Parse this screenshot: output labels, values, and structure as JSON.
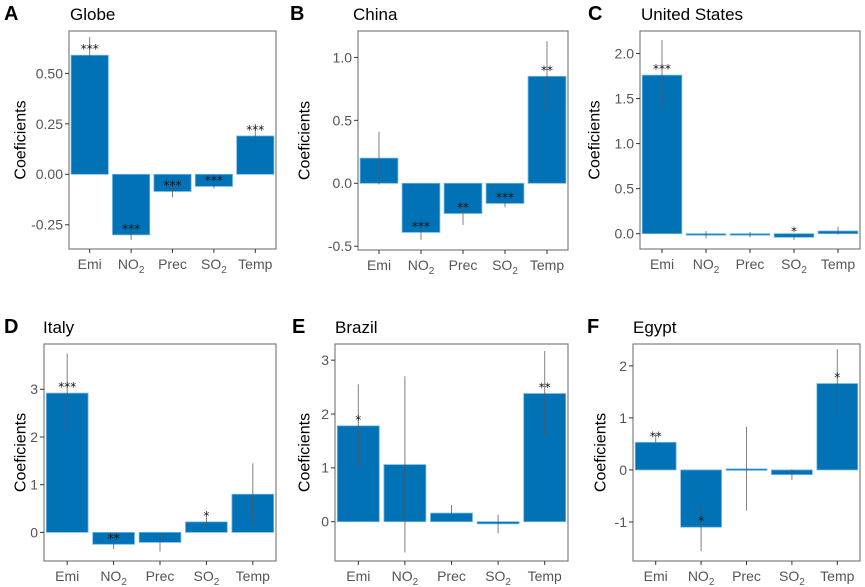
{
  "chart_data": [
    {
      "type": "bar",
      "panel": "A",
      "title": "Globe",
      "categories": [
        "Emi",
        "NO2",
        "Prec",
        "SO2",
        "Temp"
      ],
      "values": [
        0.59,
        -0.3,
        -0.085,
        -0.06,
        0.19
      ],
      "error_low": [
        0.53,
        -0.325,
        -0.115,
        -0.07,
        0.13
      ],
      "error_high": [
        0.68,
        -0.28,
        -0.06,
        -0.05,
        0.25
      ],
      "significance": [
        "***",
        "***",
        "***",
        "***",
        "***"
      ],
      "ylabel": "Coeficients",
      "xlabel": "",
      "yticks": [
        -0.25,
        0.0,
        0.25,
        0.5
      ],
      "ytick_labels": [
        "-0.25",
        "0.00",
        "0.25",
        "0.50"
      ],
      "ylim": [
        -0.37,
        0.71
      ]
    },
    {
      "type": "bar",
      "panel": "B",
      "title": "China",
      "categories": [
        "Emi",
        "NO2",
        "Prec",
        "SO2",
        "Temp"
      ],
      "values": [
        0.2,
        -0.39,
        -0.24,
        -0.16,
        0.85
      ],
      "error_low": [
        -0.01,
        -0.45,
        -0.33,
        -0.19,
        0.57
      ],
      "error_high": [
        0.41,
        -0.33,
        -0.16,
        -0.13,
        1.13
      ],
      "significance": [
        "",
        "***",
        "**",
        "***",
        "**"
      ],
      "ylabel": "Coeficients",
      "xlabel": "",
      "yticks": [
        -0.5,
        0.0,
        0.5,
        1.0
      ],
      "ytick_labels": [
        "-0.5",
        "0.0",
        "0.5",
        "1.0"
      ],
      "ylim": [
        -0.53,
        1.21
      ]
    },
    {
      "type": "bar",
      "panel": "C",
      "title": "United States",
      "categories": [
        "Emi",
        "NO2",
        "Prec",
        "SO2",
        "Temp"
      ],
      "values": [
        1.76,
        -0.01,
        -0.01,
        -0.04,
        0.03
      ],
      "error_low": [
        1.38,
        -0.05,
        -0.04,
        -0.07,
        -0.01
      ],
      "error_high": [
        2.15,
        0.03,
        0.02,
        -0.01,
        0.08
      ],
      "significance": [
        "***",
        "",
        "",
        "*",
        ""
      ],
      "ylabel": "Coeficients",
      "xlabel": "",
      "yticks": [
        0.0,
        0.5,
        1.0,
        1.5,
        2.0
      ],
      "ytick_labels": [
        "0.0",
        "0.5",
        "1.0",
        "1.5",
        "2.0"
      ],
      "ylim": [
        -0.17,
        2.25
      ]
    },
    {
      "type": "bar",
      "panel": "D",
      "title": "Italy",
      "categories": [
        "Emi",
        "NO2",
        "Prec",
        "SO2",
        "Temp"
      ],
      "values": [
        2.92,
        -0.25,
        -0.21,
        0.22,
        0.8
      ],
      "error_low": [
        2.1,
        -0.35,
        -0.4,
        0.12,
        0.15
      ],
      "error_high": [
        3.75,
        -0.15,
        -0.02,
        0.33,
        1.45
      ],
      "significance": [
        "***",
        "**",
        "",
        "*",
        ""
      ],
      "ylabel": "Coeficients",
      "xlabel": "",
      "yticks": [
        0,
        1,
        2,
        3
      ],
      "ytick_labels": [
        "0",
        "1",
        "2",
        "3"
      ],
      "ylim": [
        -0.6,
        3.95
      ]
    },
    {
      "type": "bar",
      "panel": "E",
      "title": "Brazil",
      "categories": [
        "Emi",
        "NO2",
        "Prec",
        "SO2",
        "Temp"
      ],
      "values": [
        1.78,
        1.06,
        0.16,
        -0.04,
        2.38
      ],
      "error_low": [
        1.02,
        -0.57,
        0.01,
        -0.22,
        1.59
      ],
      "error_high": [
        2.55,
        2.7,
        0.31,
        0.13,
        3.17
      ],
      "significance": [
        "*",
        "",
        "",
        "",
        "**"
      ],
      "ylabel": "Coeficients",
      "xlabel": "",
      "yticks": [
        0,
        1,
        2,
        3
      ],
      "ytick_labels": [
        "0",
        "1",
        "2",
        "3"
      ],
      "ylim": [
        -0.73,
        3.3
      ]
    },
    {
      "type": "bar",
      "panel": "F",
      "title": "Egypt",
      "categories": [
        "Emi",
        "NO2",
        "Prec",
        "SO2",
        "Temp"
      ],
      "values": [
        0.53,
        -1.1,
        0.02,
        -0.09,
        1.66
      ],
      "error_low": [
        0.36,
        -1.56,
        -0.78,
        -0.19,
        0.99
      ],
      "error_high": [
        0.7,
        -0.65,
        0.83,
        0.01,
        2.32
      ],
      "significance": [
        "**",
        "*",
        "",
        "",
        "*"
      ],
      "ylabel": "Coeficients",
      "xlabel": "",
      "yticks": [
        -1,
        0,
        1,
        2
      ],
      "ytick_labels": [
        "-1",
        "0",
        "1",
        "2"
      ],
      "ylim": [
        -1.75,
        2.42
      ]
    }
  ],
  "colors": {
    "bar": "#0072B5",
    "bar_edge": "#6fb6e6",
    "error_bar": "#555555",
    "axis": "#7f7f7f"
  },
  "category_display": [
    {
      "base": "Emi",
      "sub": ""
    },
    {
      "base": "NO",
      "sub": "2"
    },
    {
      "base": "Prec",
      "sub": ""
    },
    {
      "base": "SO",
      "sub": "2"
    },
    {
      "base": "Temp",
      "sub": ""
    }
  ]
}
